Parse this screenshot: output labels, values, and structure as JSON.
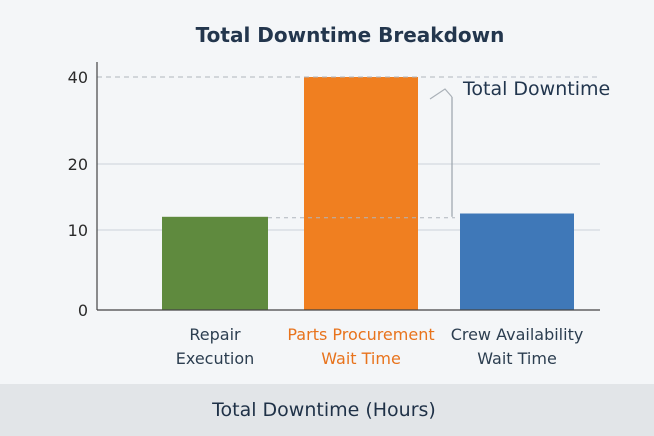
{
  "chart_data": {
    "type": "bar",
    "title": "Total Downtime Breakdown",
    "xlabel": "Total Downtime (Hours)",
    "ylabel": "",
    "categories": [
      [
        "Repair",
        "Execution"
      ],
      [
        "Parts Procurement",
        "Wait Time"
      ],
      [
        "Crew Availability",
        "Wait Time"
      ]
    ],
    "values": [
      12,
      40,
      12.5
    ],
    "colors": [
      "#5f8a3e",
      "#f07f20",
      "#3f78b8"
    ],
    "highlight_label_color": "#e8731c",
    "default_label_color": "#2c3e50",
    "yticks": [
      0,
      10,
      20,
      40
    ],
    "ylim": [
      0,
      40
    ],
    "annotation": {
      "text": "Total Downtime",
      "from_value": 12,
      "to_value": 40
    },
    "grid": true
  }
}
